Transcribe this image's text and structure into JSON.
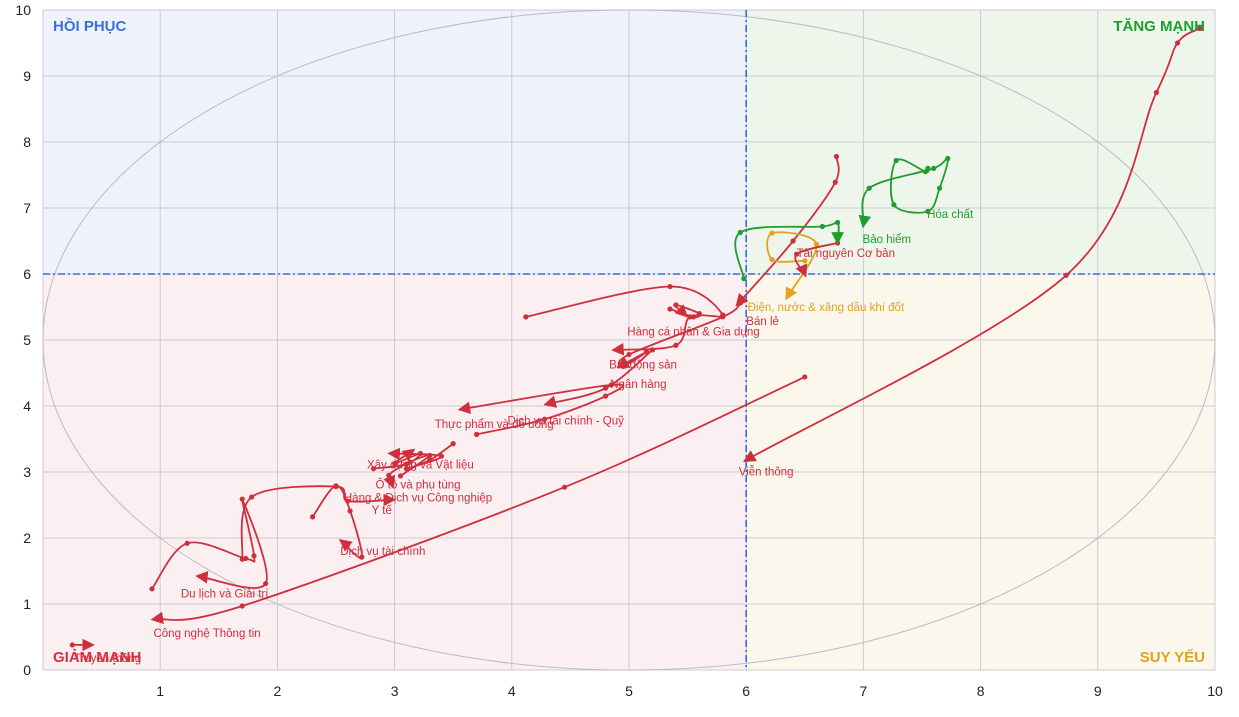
{
  "chart_data": {
    "type": "scatter",
    "xlim": [
      0,
      10
    ],
    "ylim": [
      0,
      10
    ],
    "x_ticks": [
      "1",
      "2",
      "3",
      "4",
      "5",
      "6",
      "7",
      "8",
      "9",
      "10"
    ],
    "y_ticks": [
      "0",
      "1",
      "2",
      "3",
      "4",
      "5",
      "6",
      "7",
      "8",
      "9",
      "10"
    ],
    "grid": true,
    "center": [
      6,
      6
    ],
    "quadrants": [
      {
        "label": "HỒI PHỤC",
        "position": "top-left",
        "color": "#3a6fe0",
        "fill": "#eef2fb"
      },
      {
        "label": "TĂNG MẠNH",
        "position": "top-right",
        "color": "#1f9d2e",
        "fill": "#eef6ec"
      },
      {
        "label": "GIẢM MẠNH",
        "position": "bottom-left",
        "color": "#d93040",
        "fill": "#fbeff1"
      },
      {
        "label": "SUY YẾU",
        "position": "bottom-right",
        "color": "#e0a21f",
        "fill": "#fcf7ec"
      }
    ],
    "series": [
      {
        "name": "Viễn thông",
        "color": "#cf2f3d",
        "points": [
          [
            9.87,
            9.72
          ],
          [
            9.68,
            9.5
          ],
          [
            9.5,
            8.75
          ],
          [
            8.73,
            5.98
          ],
          [
            6.0,
            3.18
          ]
        ],
        "label_at": [
          6.17,
          2.95
        ]
      },
      {
        "name": "Truyền thông",
        "color": "#cf2f3d",
        "points": [
          [
            0.25,
            0.38
          ],
          [
            0.41,
            0.38
          ]
        ],
        "label_at": [
          0.55,
          0.12
        ]
      },
      {
        "name": "Công nghệ Thông tin",
        "color": "#cf2f3d",
        "points": [
          [
            6.5,
            4.44
          ],
          [
            4.45,
            2.77
          ],
          [
            1.7,
            0.97
          ],
          [
            0.95,
            0.77
          ]
        ],
        "label_at": [
          1.4,
          0.5
        ]
      },
      {
        "name": "Dịch vụ tài chính",
        "color": "#cf2f3d",
        "points": [
          [
            2.3,
            2.32
          ],
          [
            2.5,
            2.79
          ],
          [
            2.62,
            2.41
          ],
          [
            2.72,
            1.71
          ],
          [
            2.55,
            1.95
          ]
        ],
        "label_at": [
          2.9,
          1.74
        ]
      },
      {
        "name": "Du lịch và Giải trí",
        "color": "#cf2f3d",
        "points": [
          [
            0.93,
            1.23
          ],
          [
            1.23,
            1.92
          ],
          [
            1.73,
            1.69
          ],
          [
            1.8,
            1.73
          ],
          [
            1.7,
            2.59
          ],
          [
            1.9,
            1.31
          ],
          [
            1.33,
            1.42
          ]
        ],
        "label_at": [
          1.55,
          1.1
        ]
      },
      {
        "name": "Y tế",
        "color": "#cf2f3d",
        "points": [
          [
            1.7,
            1.68
          ],
          [
            1.78,
            2.62
          ],
          [
            2.5,
            2.78
          ],
          [
            2.6,
            2.56
          ],
          [
            2.98,
            2.58
          ]
        ],
        "label_at": [
          2.89,
          2.36
        ]
      },
      {
        "name": "Hàng & Dịch vụ Công nghiệp",
        "color": "#cf2f3d",
        "points": [
          [
            3.5,
            3.43
          ],
          [
            3.3,
            3.18
          ],
          [
            3.1,
            3.05
          ],
          [
            3.4,
            3.24
          ],
          [
            2.97,
            3.28
          ]
        ],
        "label_at": [
          3.2,
          2.55
        ]
      },
      {
        "name": "Ô tô và phụ tùng",
        "color": "#cf2f3d",
        "points": [
          [
            3.05,
            2.94
          ],
          [
            3.3,
            3.25
          ],
          [
            3.13,
            3.15
          ],
          [
            2.95,
            2.95
          ],
          [
            2.98,
            2.8
          ]
        ],
        "label_at": [
          3.2,
          2.75
        ]
      },
      {
        "name": "Xây dựng và Vật liệu",
        "color": "#cf2f3d",
        "points": [
          [
            2.82,
            3.05
          ],
          [
            3.1,
            3.12
          ],
          [
            3.22,
            3.28
          ],
          [
            3.0,
            3.13
          ],
          [
            3.15,
            3.32
          ]
        ],
        "label_at": [
          3.22,
          3.05
        ]
      },
      {
        "name": "Thực phẩm và đồ uống",
        "color": "#cf2f3d",
        "points": [
          [
            3.7,
            3.57
          ],
          [
            4.28,
            3.8
          ],
          [
            4.8,
            4.15
          ],
          [
            4.85,
            4.32
          ],
          [
            3.57,
            3.95
          ]
        ],
        "label_at": [
          3.85,
          3.67
        ]
      },
      {
        "name": "Dịch vụ tài chính - Quỹ",
        "color": "#cf2f3d",
        "points": [
          [
            5.2,
            4.85
          ],
          [
            4.8,
            4.27
          ],
          [
            4.3,
            4.03
          ]
        ],
        "label_at": [
          4.46,
          3.72
        ]
      },
      {
        "name": "Ngân hàng",
        "color": "#cf2f3d",
        "points": [
          [
            5.95,
            5.56
          ],
          [
            5.8,
            5.35
          ],
          [
            5.0,
            4.78
          ],
          [
            4.95,
            4.6
          ],
          [
            5.15,
            4.82
          ],
          [
            4.92,
            4.6
          ]
        ],
        "label_at": [
          5.08,
          4.27
        ]
      },
      {
        "name": "Bất động sản",
        "color": "#cf2f3d",
        "points": [
          [
            4.12,
            5.35
          ],
          [
            5.35,
            5.81
          ],
          [
            5.8,
            5.38
          ],
          [
            5.52,
            5.35
          ],
          [
            5.4,
            4.92
          ],
          [
            4.88,
            4.85
          ]
        ],
        "label_at": [
          5.12,
          4.57
        ]
      },
      {
        "name": "Hàng cá nhân & Gia dụng",
        "color": "#cf2f3d",
        "points": [
          [
            5.35,
            5.47
          ],
          [
            5.55,
            5.35
          ],
          [
            5.6,
            5.4
          ],
          [
            5.4,
            5.53
          ],
          [
            5.48,
            5.38
          ]
        ],
        "label_at": [
          5.55,
          5.07
        ]
      },
      {
        "name": "Bán lẻ",
        "color": "#cf2f3d",
        "points": [
          [
            6.77,
            7.78
          ],
          [
            6.76,
            7.39
          ],
          [
            6.4,
            6.5
          ],
          [
            5.93,
            5.55
          ]
        ],
        "label_at": [
          6.14,
          5.23
        ]
      },
      {
        "name": "Điện, nước & xăng dầu khí đốt",
        "color": "#e0a21f",
        "points": [
          [
            6.5,
            6.2
          ],
          [
            6.22,
            6.22
          ],
          [
            6.22,
            6.62
          ],
          [
            6.6,
            6.45
          ],
          [
            6.35,
            5.65
          ]
        ],
        "label_at": [
          6.68,
          5.44
        ]
      },
      {
        "name": "Tài nguyên Cơ bản",
        "color": "#cf2f3d",
        "points": [
          [
            6.78,
            6.47
          ],
          [
            6.43,
            6.3
          ],
          [
            6.5,
            6.0
          ]
        ],
        "label_at": [
          6.85,
          6.26
        ]
      },
      {
        "name": "Bảo hiểm",
        "color": "#1f9d2e",
        "points": [
          [
            5.98,
            5.93
          ],
          [
            5.95,
            6.63
          ],
          [
            6.65,
            6.72
          ],
          [
            6.78,
            6.78
          ],
          [
            6.78,
            6.5
          ]
        ],
        "label_at": [
          7.2,
          6.47
        ]
      },
      {
        "name": "Hóa chất",
        "color": "#1f9d2e",
        "points": [
          [
            7.55,
            7.6
          ],
          [
            7.53,
            7.55
          ],
          [
            7.28,
            7.72
          ],
          [
            7.26,
            7.05
          ],
          [
            7.55,
            6.95
          ],
          [
            7.65,
            7.3
          ],
          [
            7.72,
            7.75
          ],
          [
            7.6,
            7.6
          ],
          [
            7.05,
            7.3
          ],
          [
            7.0,
            6.75
          ]
        ],
        "label_at": [
          7.74,
          6.85
        ]
      }
    ]
  }
}
